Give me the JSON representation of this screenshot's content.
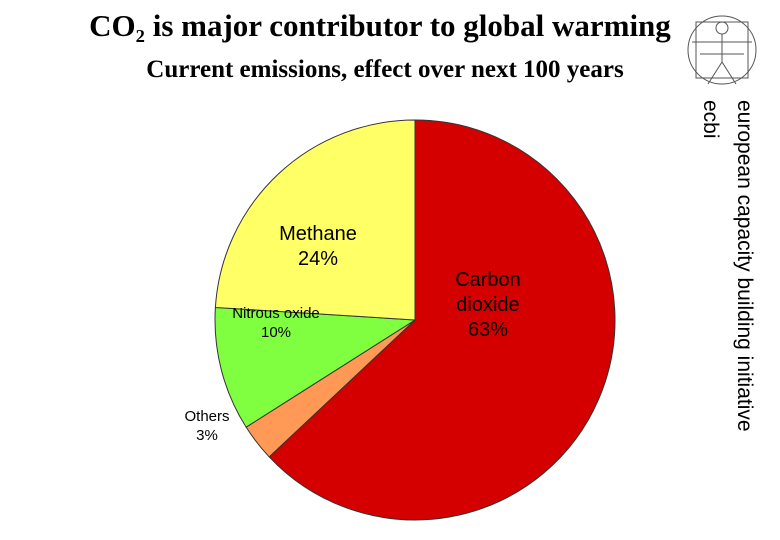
{
  "chart_data": {
    "type": "pie",
    "title": "CO₂ is major contributor to global warming",
    "subtitle": "Current emissions, effect over next 100 years",
    "categories": [
      "Carbon dioxide",
      "Others",
      "Nitrous oxide",
      "Methane"
    ],
    "values": [
      63,
      3,
      10,
      24
    ],
    "value_labels": [
      "63%",
      "3%",
      "10%",
      "24%"
    ],
    "colors": [
      "#d40000",
      "#ff9955",
      "#80ff40",
      "#ffff66"
    ]
  },
  "side_text": {
    "organization": "european capacity building initiative",
    "acronym": "ecbi"
  }
}
